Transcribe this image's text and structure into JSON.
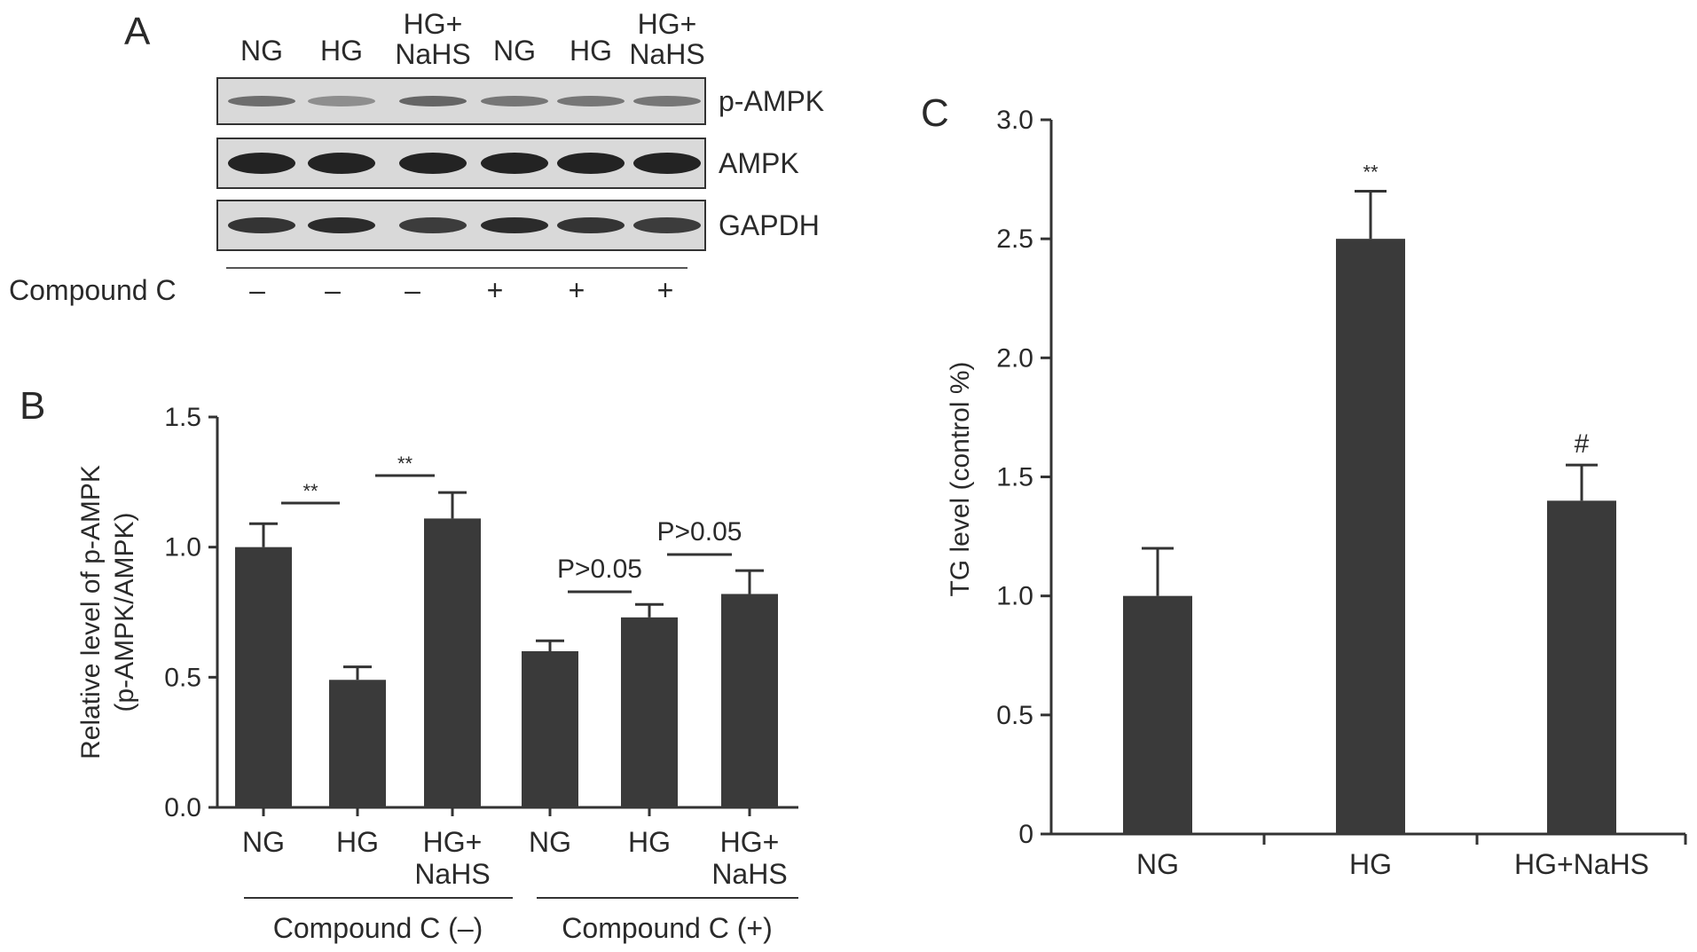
{
  "panels": {
    "A": {
      "letter": "A",
      "lanes": [
        {
          "line1": "NG",
          "line2": ""
        },
        {
          "line1": "HG",
          "line2": ""
        },
        {
          "line1": "HG+",
          "line2": "NaHS"
        },
        {
          "line1": "NG",
          "line2": ""
        },
        {
          "line1": "HG",
          "line2": ""
        },
        {
          "line1": "HG+",
          "line2": "NaHS"
        }
      ],
      "blots": [
        {
          "label": "p-AMPK",
          "band_intensity": [
            0.55,
            0.35,
            0.6,
            0.5,
            0.5,
            0.5
          ]
        },
        {
          "label": "AMPK",
          "band_intensity": [
            1,
            1,
            1,
            1,
            1,
            1
          ]
        },
        {
          "label": "GAPDH",
          "band_intensity": [
            0.9,
            0.95,
            0.85,
            0.95,
            0.9,
            0.85
          ]
        }
      ],
      "treatment_label": "Compound C",
      "treatment_marks": [
        "–",
        "–",
        "–",
        "+",
        "+",
        "+"
      ]
    },
    "B": {
      "letter": "B",
      "group_labels": [
        "Compound C (–)",
        "Compound C (+)"
      ]
    },
    "C": {
      "letter": "C"
    }
  },
  "chart_data": [
    {
      "type": "bar",
      "panel": "B",
      "categories": [
        {
          "line1": "NG",
          "line2": ""
        },
        {
          "line1": "HG",
          "line2": ""
        },
        {
          "line1": "HG+",
          "line2": "NaHS"
        },
        {
          "line1": "NG",
          "line2": ""
        },
        {
          "line1": "HG",
          "line2": ""
        },
        {
          "line1": "HG+",
          "line2": "NaHS"
        }
      ],
      "values": [
        1.0,
        0.49,
        1.11,
        0.6,
        0.73,
        0.82
      ],
      "errors": [
        0.09,
        0.05,
        0.1,
        0.04,
        0.05,
        0.09
      ],
      "ylabel_line1": "Relative level of p-AMPK",
      "ylabel_line2": "(p-AMPK/AMPK)",
      "ylim": [
        0,
        1.5
      ],
      "yticks": [
        {
          "value": 0,
          "label": "0.0"
        },
        {
          "value": 0.5,
          "label": "0.5"
        },
        {
          "value": 1.0,
          "label": "1.0"
        },
        {
          "value": 1.5,
          "label": "1.5"
        }
      ],
      "bar_color": "#3a3a3a",
      "comparisons": [
        {
          "from": 0,
          "to": 1,
          "label": "**"
        },
        {
          "from": 1,
          "to": 2,
          "label": "**"
        },
        {
          "from": 3,
          "to": 4,
          "label": "P>0.05"
        },
        {
          "from": 4,
          "to": 5,
          "label": "P>0.05"
        }
      ],
      "grid": false
    },
    {
      "type": "bar",
      "panel": "C",
      "categories": [
        "NG",
        "HG",
        "HG+NaHS"
      ],
      "values": [
        1.0,
        2.5,
        1.4
      ],
      "errors": [
        0.2,
        0.2,
        0.15
      ],
      "annotations": [
        "",
        "**",
        "#"
      ],
      "ylabel": "TG level (control %)",
      "ylim": [
        0,
        3.0
      ],
      "yticks": [
        {
          "value": 0,
          "label": "0"
        },
        {
          "value": 0.5,
          "label": "0.5"
        },
        {
          "value": 1.0,
          "label": "1.0"
        },
        {
          "value": 1.5,
          "label": "1.5"
        },
        {
          "value": 2.0,
          "label": "2.0"
        },
        {
          "value": 2.5,
          "label": "2.5"
        },
        {
          "value": 3.0,
          "label": "3.0"
        }
      ],
      "bar_color": "#3a3a3a",
      "grid": false
    }
  ]
}
